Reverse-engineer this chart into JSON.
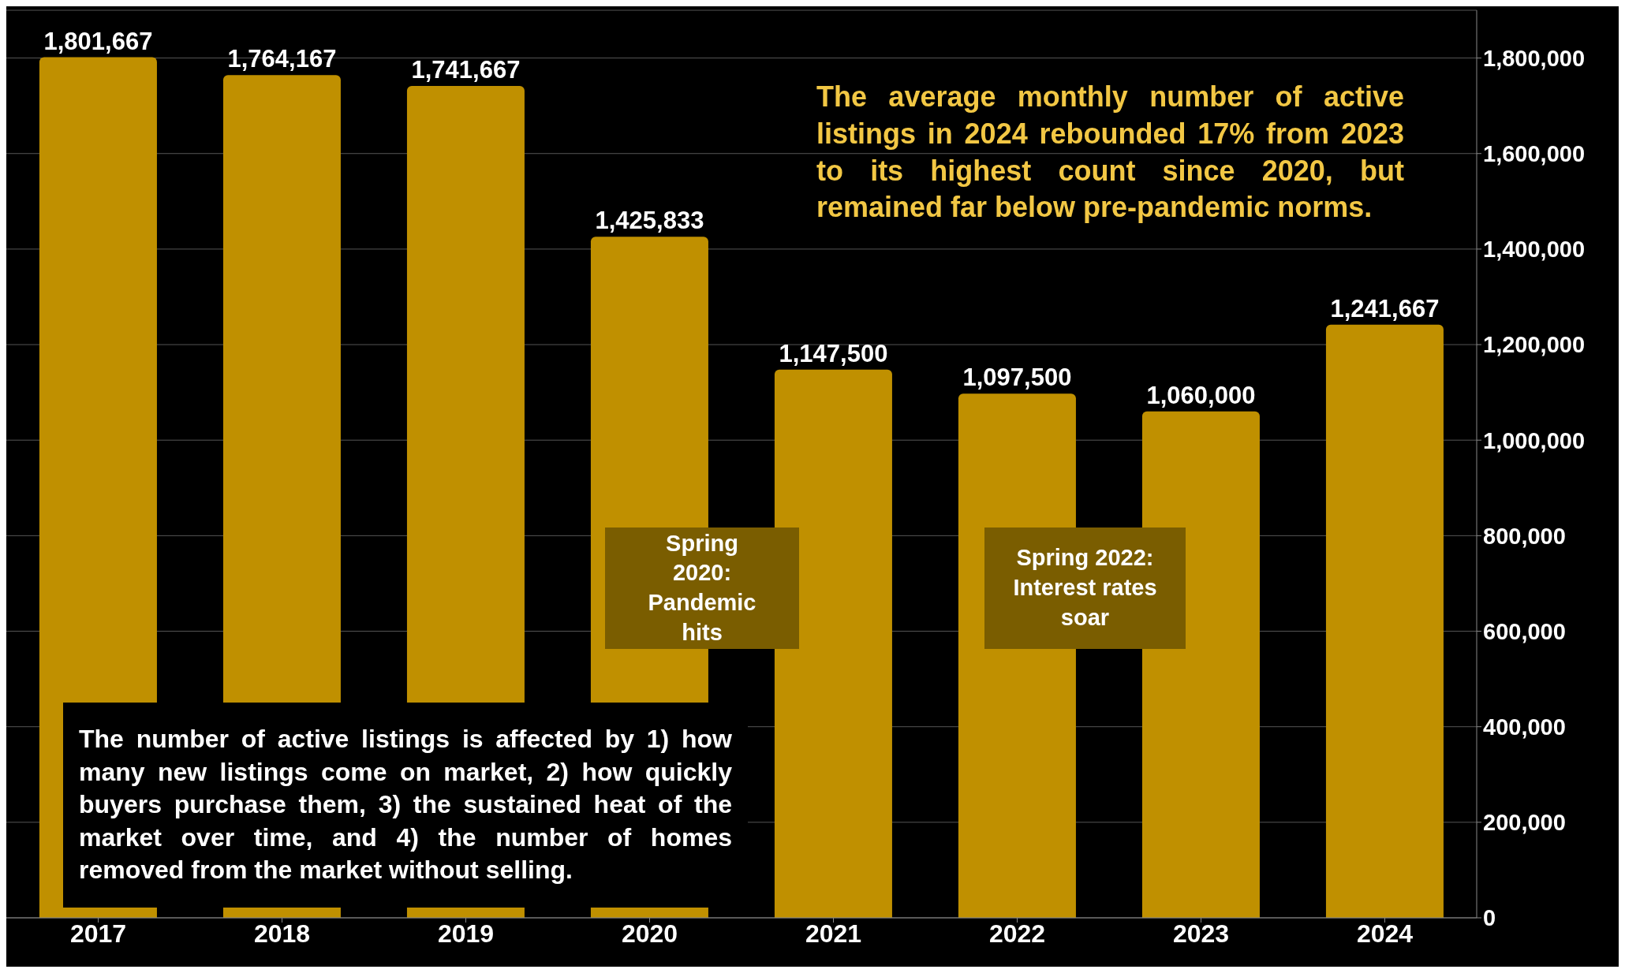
{
  "chart_data": {
    "type": "bar",
    "categories": [
      "2017",
      "2018",
      "2019",
      "2020",
      "2021",
      "2022",
      "2023",
      "2024"
    ],
    "values": [
      1801667,
      1764167,
      1741667,
      1425833,
      1147500,
      1097500,
      1060000,
      1241667
    ],
    "value_labels": [
      "1,801,667",
      "1,764,167",
      "1,741,667",
      "1,425,833",
      "1,147,500",
      "1,097,500",
      "1,060,000",
      "1,241,667"
    ],
    "color": "#c09000",
    "grid": "y",
    "ylim": [
      0,
      1900000
    ],
    "yticks": [
      {
        "value": 0,
        "label": "0"
      },
      {
        "value": 200000,
        "label": "200,000"
      },
      {
        "value": 400000,
        "label": "400,000"
      },
      {
        "value": 600000,
        "label": "600,000"
      },
      {
        "value": 800000,
        "label": "800,000"
      },
      {
        "value": 1000000,
        "label": "1,000,000"
      },
      {
        "value": 1200000,
        "label": "1,200,000"
      },
      {
        "value": 1400000,
        "label": "1,400,000"
      },
      {
        "value": 1600000,
        "label": "1,600,000"
      },
      {
        "value": 1800000,
        "label": "1,800,000"
      }
    ],
    "annotations": [
      "The average monthly number of active listings in 2024 rebounded 17% from 2023 to its highest count since 2020, but remained far below pre-pandemic norms.",
      "Spring 2020: Pandemic hits",
      "Spring 2022: Interest rates soar",
      "The number of active listings is affected by 1) how many new listings come on market, 2) how quickly buyers purchase them, 3) the sustained heat of the market over time, and 4) the number of homes removed from the market without selling."
    ]
  }
}
